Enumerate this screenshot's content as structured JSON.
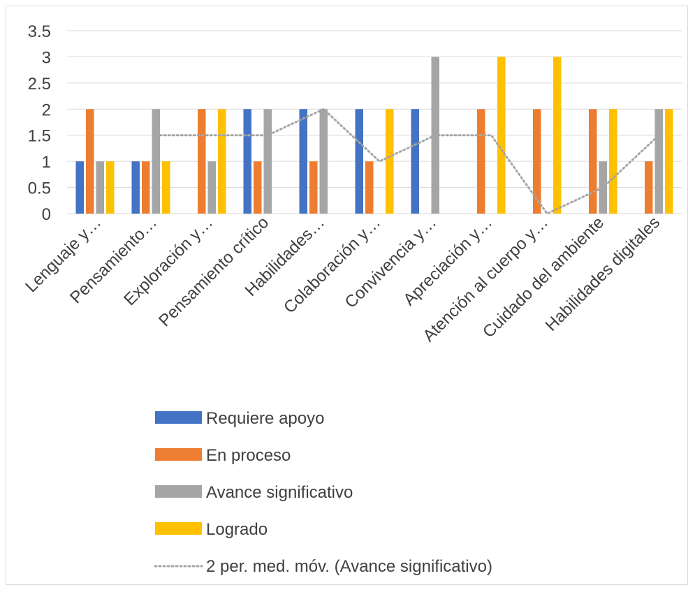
{
  "chart_data": {
    "type": "bar",
    "categories": [
      "Lenguaje y…",
      "Pensamiento…",
      "Exploración y…",
      "Pensamiento crítico",
      "Habilidades…",
      "Colaboración y…",
      "Convivencia y…",
      "Apreciación y…",
      "Atención al cuerpo y…",
      "Cuidado del ambiente",
      "Habilidades digitales"
    ],
    "series": [
      {
        "name": "Requiere apoyo",
        "color": "#4472c4",
        "values": [
          1,
          1,
          0,
          2,
          2,
          2,
          2,
          0,
          0,
          0,
          0
        ]
      },
      {
        "name": "En proceso",
        "color": "#ed7d31",
        "values": [
          2,
          1,
          2,
          1,
          1,
          1,
          0,
          2,
          2,
          2,
          1
        ]
      },
      {
        "name": "Avance significativo",
        "color": "#a5a5a5",
        "values": [
          1,
          2,
          1,
          2,
          2,
          0,
          3,
          0,
          0,
          1,
          2
        ]
      },
      {
        "name": "Logrado",
        "color": "#ffc000",
        "values": [
          1,
          1,
          2,
          0,
          0,
          2,
          0,
          3,
          3,
          2,
          2
        ]
      }
    ],
    "trendline": {
      "name": "2 per. med. móv. (Avance significativo)",
      "type": "moving-average",
      "period": 2,
      "color": "#a5a5a5",
      "values": [
        null,
        1.5,
        1.5,
        1.5,
        2,
        1,
        1.5,
        1.5,
        0,
        0.5,
        1.5
      ]
    },
    "y_ticks": [
      "0",
      "0.5",
      "1",
      "1.5",
      "2",
      "2.5",
      "3",
      "3.5"
    ],
    "ylim": [
      0,
      3.5
    ],
    "grid": true,
    "legend_position": "bottom",
    "title": "",
    "xlabel": "",
    "ylabel": ""
  }
}
